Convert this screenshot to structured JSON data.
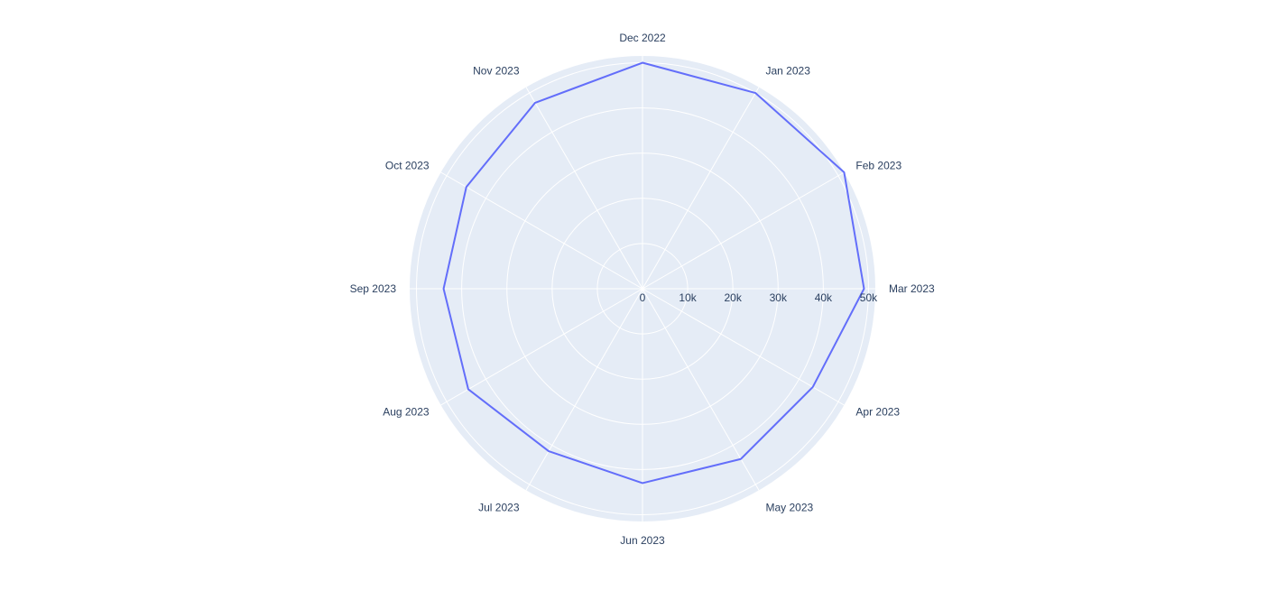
{
  "chart_data": {
    "type": "polar-line",
    "categories": [
      "Dec 2022",
      "Jan 2023",
      "Feb 2023",
      "Mar 2023",
      "Apr 2023",
      "May 2023",
      "Jun 2023",
      "Jul 2023",
      "Aug 2023",
      "Sep 2023",
      "Oct 2023",
      "Nov 2023"
    ],
    "values": [
      50000,
      50000,
      51500,
      49000,
      43500,
      43500,
      43000,
      41500,
      44500,
      44000,
      45000,
      47500
    ],
    "radial_ticks": [
      "0",
      "10k",
      "20k",
      "30k",
      "40k",
      "50k"
    ],
    "radial_tick_values": [
      0,
      10000,
      20000,
      30000,
      40000,
      50000
    ],
    "radial_range": [
      0,
      51500
    ],
    "angular_direction": "clockwise",
    "angular_rotation": "start at top",
    "grid": true,
    "colors": {
      "line": "#636efa",
      "plot_background": "#e5ecf6",
      "grid": "#ffffff",
      "text": "#2a3f5f"
    }
  }
}
